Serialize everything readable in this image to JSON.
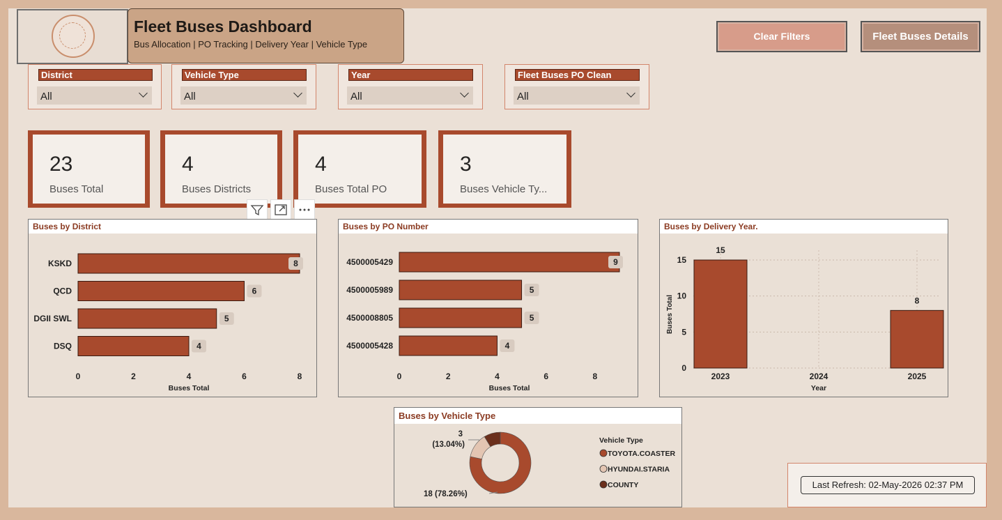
{
  "header": {
    "title": "Fleet Buses Dashboard",
    "subtitle": "Bus Allocation | PO Tracking | Delivery Year | Vehicle Type"
  },
  "buttons": {
    "clear_filters": "Clear Filters",
    "details": "Fleet Buses Details"
  },
  "slicers": [
    {
      "label": "District",
      "value": "All"
    },
    {
      "label": "Vehicle Type",
      "value": "All"
    },
    {
      "label": "Year",
      "value": "All"
    },
    {
      "label": "Fleet Buses PO Clean",
      "value": "All"
    }
  ],
  "cards": [
    {
      "value": "23",
      "label": "Buses Total"
    },
    {
      "value": "4",
      "label": "Buses Districts"
    },
    {
      "value": "4",
      "label": "Buses Total PO"
    },
    {
      "value": "3",
      "label": "Buses Vehicle Ty..."
    }
  ],
  "footer": {
    "last_refresh": "Last Refresh: 02-May-2026 02:37 PM"
  },
  "colors": {
    "accent": "#a84a2d",
    "panel_bg": "#eae0d6",
    "page_bg": "#ebe0d6",
    "frame": "#d9b79d"
  },
  "icons": [
    "filter-icon",
    "focus-mode-icon",
    "more-options-icon",
    "chevron-down-icon"
  ],
  "chart_data": [
    {
      "type": "bar",
      "title": "Buses by District",
      "categories": [
        "KSKD",
        "QCD",
        "DGII SWL",
        "DSQ"
      ],
      "values": [
        8,
        6,
        5,
        4
      ],
      "xlabel": "Buses Total",
      "xlim": [
        0,
        8
      ],
      "ticks": [
        "0",
        "2",
        "4",
        "6",
        "8"
      ]
    },
    {
      "type": "bar",
      "title": "Buses by PO Number",
      "categories": [
        "4500005429",
        "4500005989",
        "4500008805",
        "4500005428"
      ],
      "values": [
        9,
        5,
        5,
        4
      ],
      "xlabel": "Buses Total",
      "xlim": [
        0,
        9
      ],
      "ticks": [
        "0",
        "2",
        "4",
        "6",
        "8"
      ]
    },
    {
      "type": "bar",
      "title": "Buses by Delivery Year.",
      "categories": [
        "2023",
        "2024",
        "2025"
      ],
      "values": [
        15,
        0,
        8
      ],
      "xlabel": "Year",
      "ylabel": "Buses Total",
      "ylim": [
        0,
        15
      ],
      "ticks": [
        "0",
        "5",
        "10",
        "15"
      ],
      "grid": true
    },
    {
      "type": "pie",
      "title": "Buses by Vehicle Type",
      "legend_title": "Vehicle Type",
      "labels": [
        "TOYOTA.COASTER",
        "HYUNDAI.STARIA",
        "COUNTY"
      ],
      "values": [
        18,
        3,
        2
      ],
      "colors": [
        "#a84a2d",
        "#e3c5b2",
        "#6b2f1c"
      ],
      "data_labels": [
        {
          "count": "3",
          "pct": "(13.04%)"
        },
        {
          "text": "18 (78.26%)"
        }
      ]
    }
  ]
}
